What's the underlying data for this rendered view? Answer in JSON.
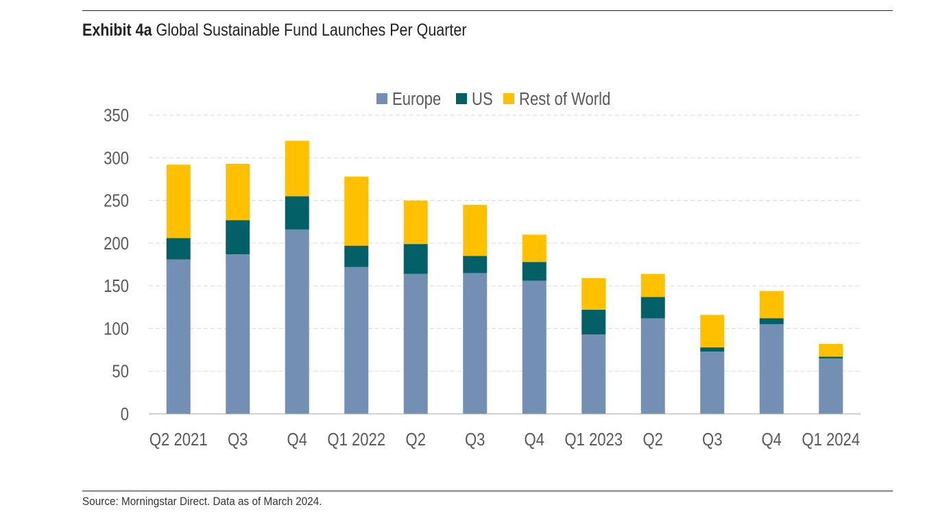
{
  "header": {
    "exhibit_label": "Exhibit 4a",
    "title": "Global Sustainable Fund Launches Per Quarter"
  },
  "footer": {
    "source": "Source: Morningstar Direct. Data as of March 2024."
  },
  "chart_data": {
    "type": "bar",
    "stacked": true,
    "title": "Exhibit 4a Global Sustainable Fund Launches Per Quarter",
    "xlabel": "",
    "ylabel": "",
    "categories": [
      "Q2 2021",
      "Q3",
      "Q4",
      "Q1 2022",
      "Q2",
      "Q3",
      "Q4",
      "Q1 2023",
      "Q2",
      "Q3",
      "Q4",
      "Q1 2024"
    ],
    "series": [
      {
        "name": "Europe",
        "color": "#738fb3",
        "values": [
          181,
          187,
          216,
          172,
          164,
          165,
          156,
          93,
          112,
          73,
          105,
          65
        ]
      },
      {
        "name": "US",
        "color": "#036066",
        "values": [
          25,
          40,
          39,
          25,
          35,
          20,
          22,
          29,
          25,
          5,
          7,
          2
        ]
      },
      {
        "name": "Rest of World",
        "color": "#ffc000",
        "values": [
          86,
          66,
          65,
          81,
          51,
          60,
          32,
          37,
          27,
          38,
          32,
          15
        ]
      }
    ],
    "ylim": [
      0,
      350
    ],
    "yticks": [
      0,
      50,
      100,
      150,
      200,
      250,
      300,
      350
    ],
    "grid": true,
    "legend": "top-center"
  }
}
